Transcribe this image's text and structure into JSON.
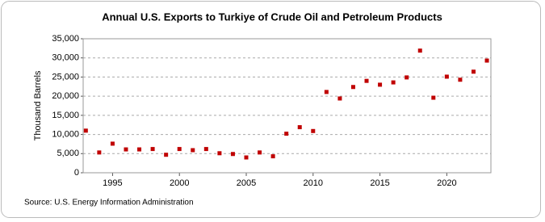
{
  "chart_data": {
    "type": "scatter",
    "title": "Annual U.S. Exports to Turkiye of Crude Oil and Petroleum Products",
    "y_label": "Thousand Barrels",
    "source": "Source: U.S. Energy Information Administration",
    "x": [
      1993,
      1994,
      1995,
      1996,
      1997,
      1998,
      1999,
      2000,
      2001,
      2002,
      2003,
      2004,
      2005,
      2006,
      2007,
      2008,
      2009,
      2010,
      2011,
      2012,
      2013,
      2014,
      2015,
      2016,
      2017,
      2018,
      2019,
      2020,
      2021,
      2022,
      2023
    ],
    "series": [
      {
        "name": "Exports",
        "color": "#c00000",
        "values": [
          11000,
          5300,
          7600,
          6100,
          6100,
          6200,
          4700,
          6200,
          5900,
          6200,
          5100,
          4900,
          4000,
          5300,
          4300,
          10200,
          11900,
          10900,
          21100,
          19400,
          22400,
          24000,
          23000,
          23600,
          24900,
          31900,
          19600,
          25100,
          24300,
          26400,
          29300
        ]
      }
    ],
    "xlim": [
      1992.8,
      2023.3
    ],
    "xticks": [
      1995,
      2000,
      2005,
      2010,
      2015,
      2020
    ],
    "ylim": [
      0,
      35000
    ],
    "yticks": [
      0,
      {
        "value": 5000,
        "label": "5,000"
      },
      {
        "value": 10000,
        "label": "10,000"
      },
      {
        "value": 15000,
        "label": "15,000"
      },
      {
        "value": 20000,
        "label": "20,000"
      },
      {
        "value": 25000,
        "label": "25,000"
      },
      {
        "value": 30000,
        "label": "30,000"
      },
      {
        "value": 35000,
        "label": "35,000"
      }
    ],
    "grid": true
  }
}
